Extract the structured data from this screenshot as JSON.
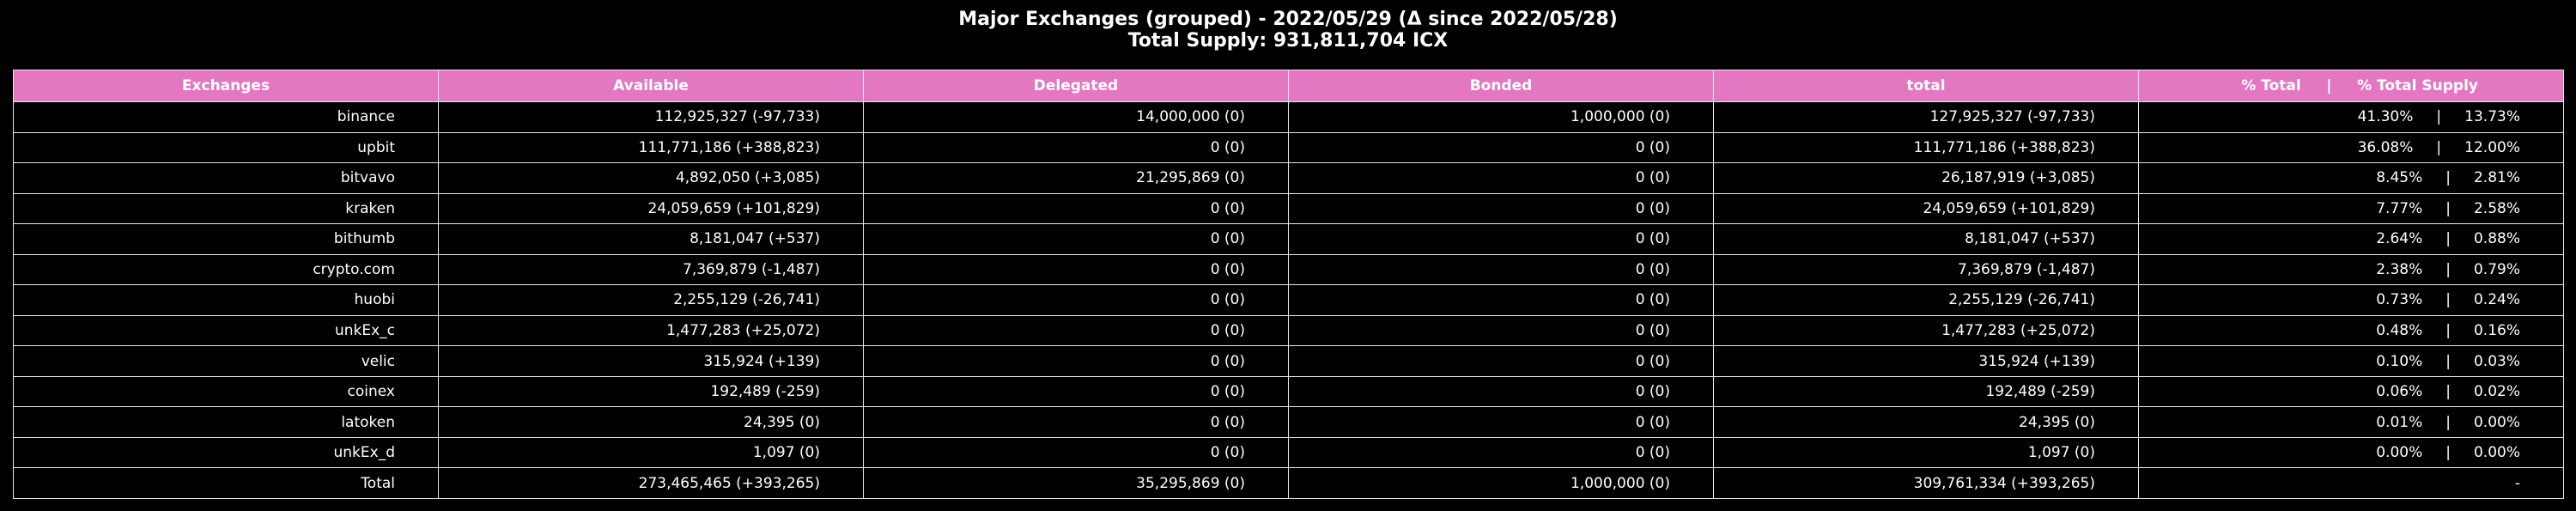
{
  "chart_data": {
    "type": "table",
    "title": "Major Exchanges (grouped) - 2022/05/29 (Δ since 2022/05/28)",
    "subtitle": "Total Supply: 931,811,704 ICX",
    "columns": [
      "Exchanges",
      "Available",
      "Delegated",
      "Bonded",
      "total",
      "% Total     |     % Total Supply"
    ],
    "rows": [
      [
        "binance",
        "112,925,327 (-97,733)",
        "14,000,000 (0)",
        "1,000,000 (0)",
        "127,925,327 (-97,733)",
        "41.30%     |     13.73%"
      ],
      [
        "upbit",
        "111,771,186 (+388,823)",
        "0 (0)",
        "0 (0)",
        "111,771,186 (+388,823)",
        "36.08%     |     12.00%"
      ],
      [
        "bitvavo",
        "4,892,050 (+3,085)",
        "21,295,869 (0)",
        "0 (0)",
        "26,187,919 (+3,085)",
        "8.45%     |     2.81%"
      ],
      [
        "kraken",
        "24,059,659 (+101,829)",
        "0 (0)",
        "0 (0)",
        "24,059,659 (+101,829)",
        "7.77%     |     2.58%"
      ],
      [
        "bithumb",
        "8,181,047 (+537)",
        "0 (0)",
        "0 (0)",
        "8,181,047 (+537)",
        "2.64%     |     0.88%"
      ],
      [
        "crypto.com",
        "7,369,879 (-1,487)",
        "0 (0)",
        "0 (0)",
        "7,369,879 (-1,487)",
        "2.38%     |     0.79%"
      ],
      [
        "huobi",
        "2,255,129 (-26,741)",
        "0 (0)",
        "0 (0)",
        "2,255,129 (-26,741)",
        "0.73%     |     0.24%"
      ],
      [
        "unkEx_c",
        "1,477,283 (+25,072)",
        "0 (0)",
        "0 (0)",
        "1,477,283 (+25,072)",
        "0.48%     |     0.16%"
      ],
      [
        "velic",
        "315,924 (+139)",
        "0 (0)",
        "0 (0)",
        "315,924 (+139)",
        "0.10%     |     0.03%"
      ],
      [
        "coinex",
        "192,489 (-259)",
        "0 (0)",
        "0 (0)",
        "192,489 (-259)",
        "0.06%     |     0.02%"
      ],
      [
        "latoken",
        "24,395 (0)",
        "0 (0)",
        "0 (0)",
        "24,395 (0)",
        "0.01%     |     0.00%"
      ],
      [
        "unkEx_d",
        "1,097 (0)",
        "0 (0)",
        "0 (0)",
        "1,097 (0)",
        "0.00%     |     0.00%"
      ],
      [
        "Total",
        "273,465,465 (+393,265)",
        "35,295,869 (0)",
        "1,000,000 (0)",
        "309,761,334 (+393,265)",
        "-"
      ]
    ],
    "header_color": "#e377c2",
    "background_color": "#000000",
    "text_color": "#ffffff"
  }
}
